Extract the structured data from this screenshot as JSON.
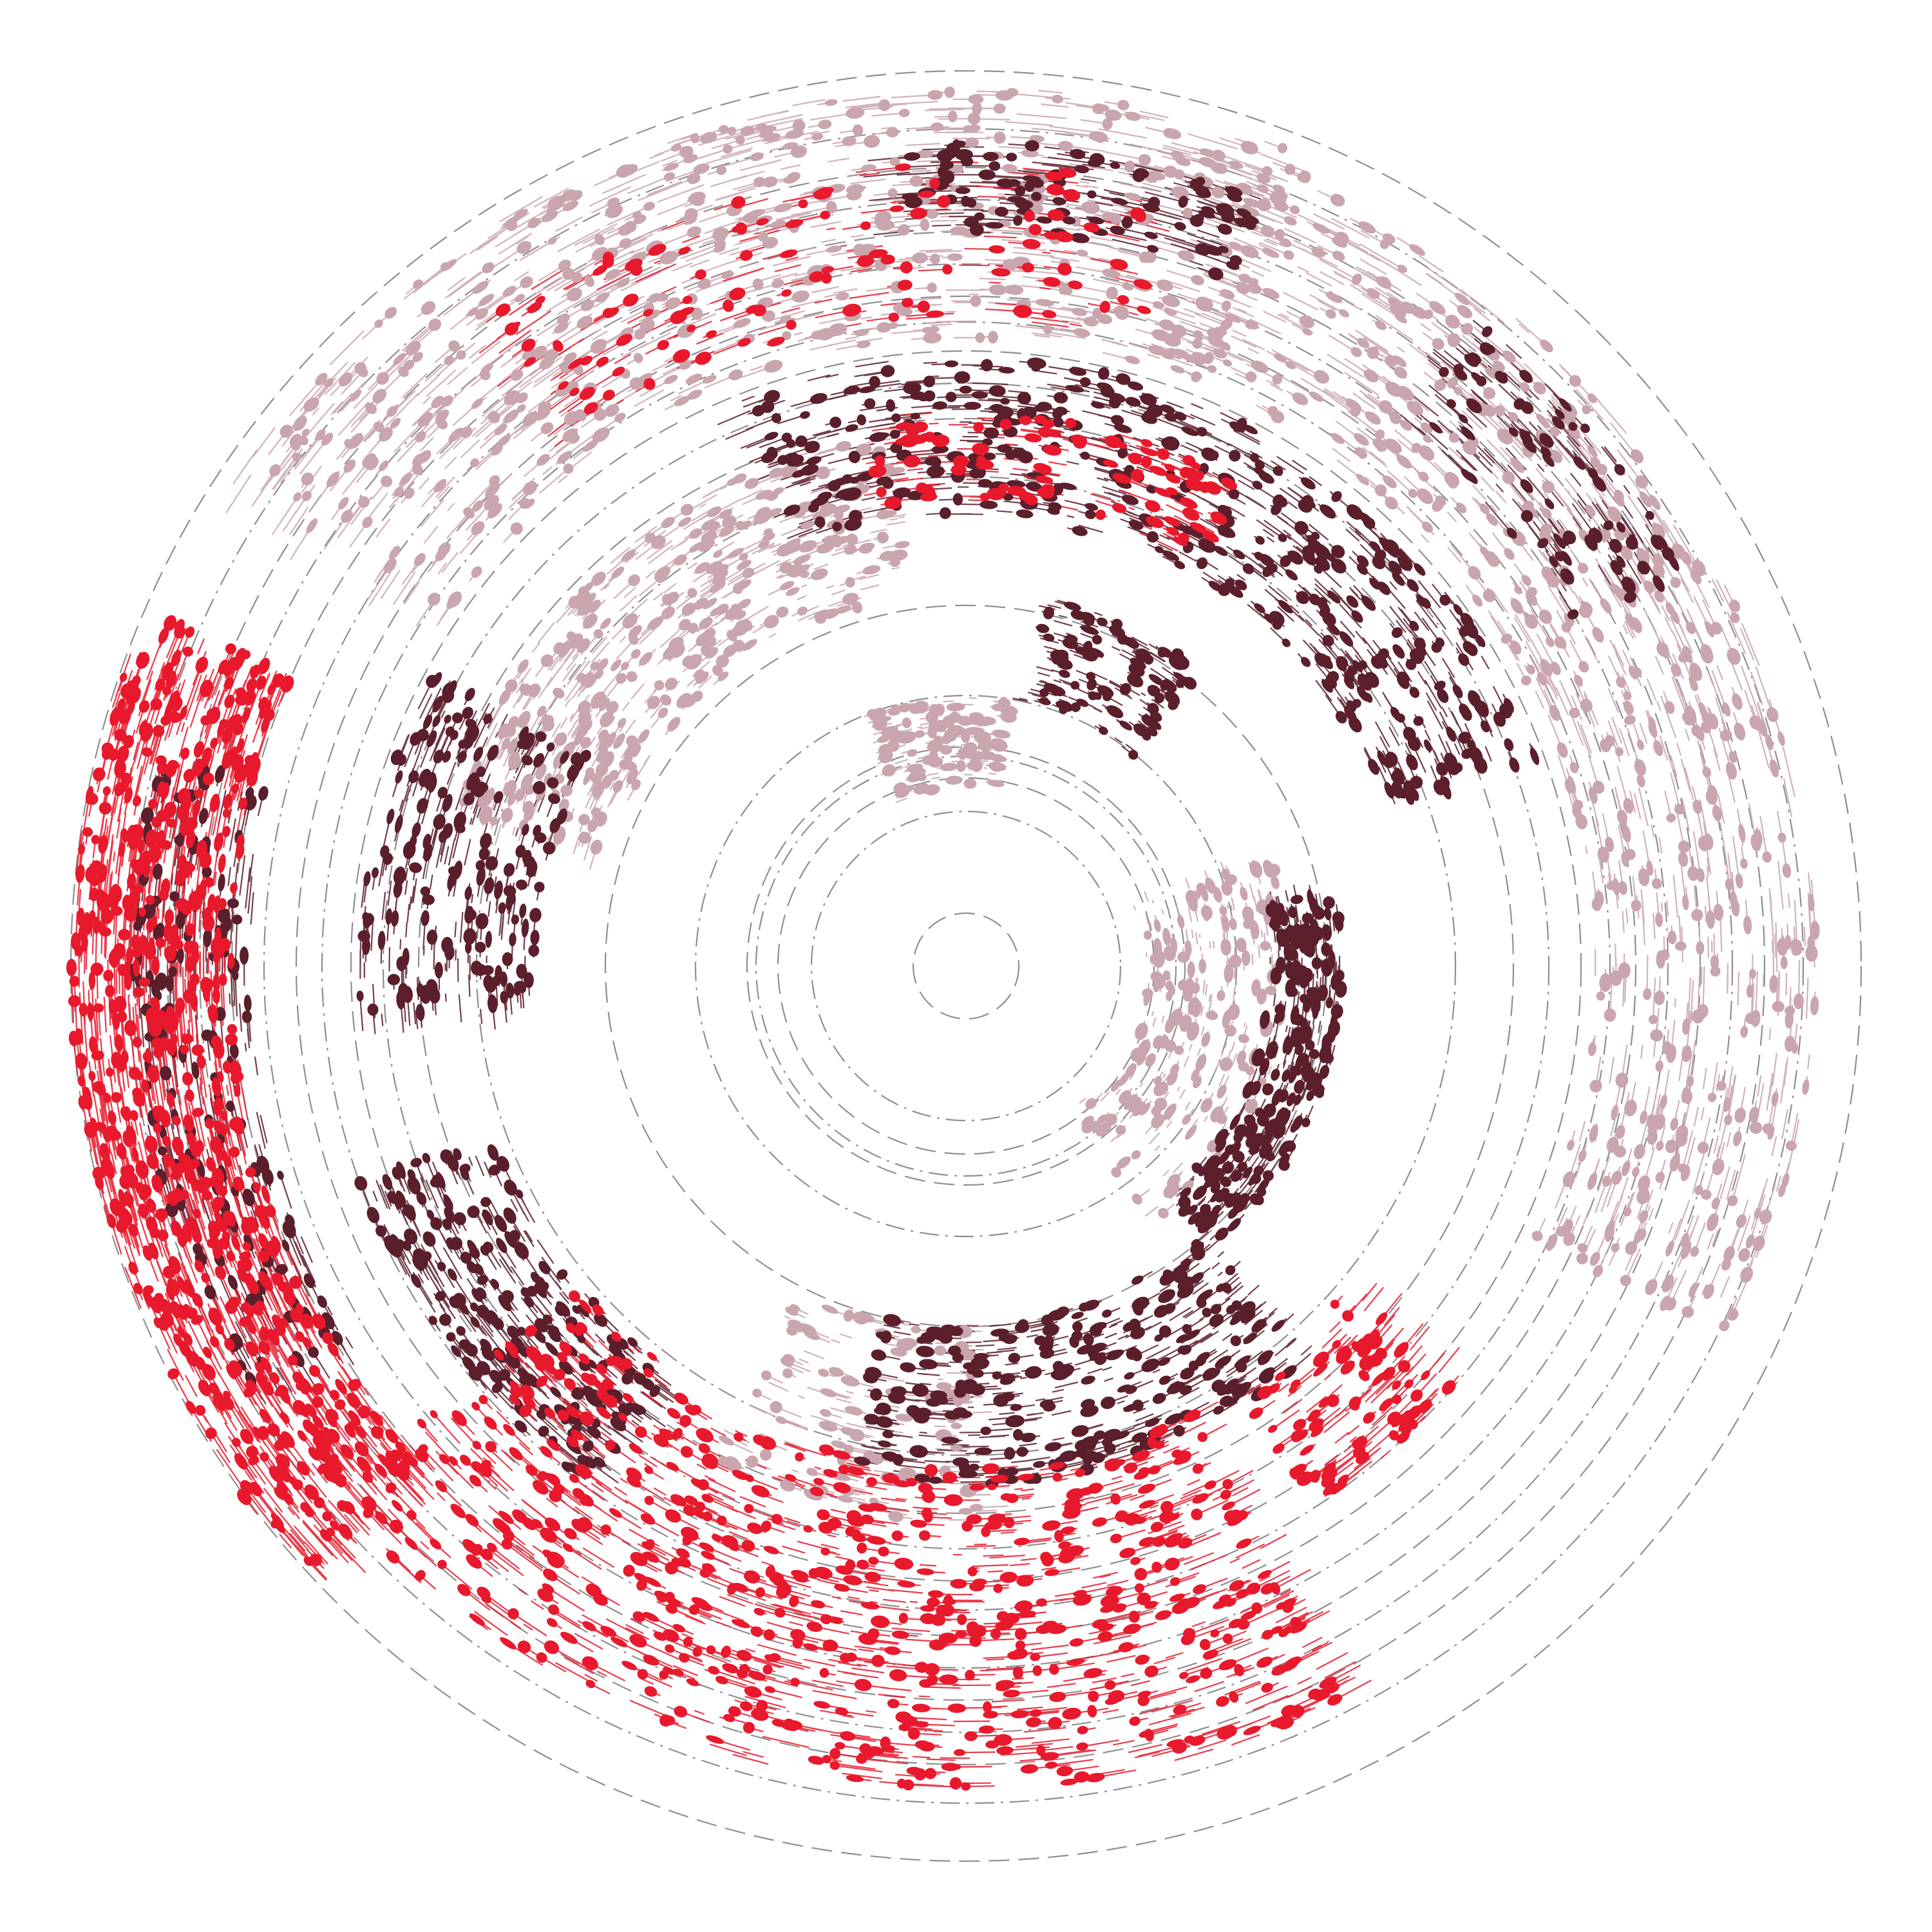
{
  "colors": {
    "background": "#ffffff",
    "ring_stroke": "#8f8f8f",
    "palette": {
      "mauve": "#c9a6ad",
      "maroon": "#5b1f2c",
      "red": "#e8192c"
    }
  },
  "ring_styles": [
    "dashed",
    "dash-dot"
  ],
  "strokes": [
    {
      "color": "mauve",
      "t0": -1.22,
      "t1": 0.45,
      "fr": [
        0.7,
        0.95
      ],
      "n": 900
    },
    {
      "color": "mauve",
      "t0": -2.55,
      "t1": -1.15,
      "fr": [
        0.7,
        0.98
      ],
      "n": 900
    },
    {
      "color": "mauve",
      "t0": -2.85,
      "t1": -1.7,
      "fr": [
        0.42,
        0.6
      ],
      "n": 520
    },
    {
      "color": "mauve",
      "t0": -0.35,
      "t1": 0.95,
      "fr": [
        0.2,
        0.36
      ],
      "n": 280
    },
    {
      "color": "mauve",
      "t0": -1.95,
      "t1": -1.4,
      "fr": [
        0.2,
        0.3
      ],
      "n": 160
    },
    {
      "color": "mauve",
      "t0": 1.55,
      "t1": 2.05,
      "fr": [
        0.4,
        0.62
      ],
      "n": 160
    },
    {
      "color": "maroon",
      "t0": -1.95,
      "t1": -0.35,
      "fr": [
        0.5,
        0.68
      ],
      "n": 700
    },
    {
      "color": "maroon",
      "t0": -0.2,
      "t1": 0.85,
      "fr": [
        0.34,
        0.42
      ],
      "n": 360
    },
    {
      "color": "maroon",
      "t0": 0.85,
      "t1": 1.8,
      "fr": [
        0.4,
        0.58
      ],
      "n": 460
    },
    {
      "color": "maroon",
      "t0": 2.2,
      "t1": 2.8,
      "fr": [
        0.56,
        0.72
      ],
      "n": 340
    },
    {
      "color": "maroon",
      "t0": 2.6,
      "t1": 3.4,
      "fr": [
        0.8,
        0.93
      ],
      "n": 280
    },
    {
      "color": "maroon",
      "t0": 3.05,
      "t1": 3.65,
      "fr": [
        0.48,
        0.68
      ],
      "n": 300
    },
    {
      "color": "maroon",
      "t0": -1.65,
      "t1": -1.2,
      "fr": [
        0.82,
        0.92
      ],
      "n": 150
    },
    {
      "color": "maroon",
      "t0": -0.9,
      "t1": -0.5,
      "fr": [
        0.78,
        0.92
      ],
      "n": 140
    },
    {
      "color": "maroon",
      "t0": -1.35,
      "t1": -0.9,
      "fr": [
        0.3,
        0.42
      ],
      "n": 150
    },
    {
      "color": "red",
      "t0": 2.4,
      "t1": 3.55,
      "fr": [
        0.82,
        1.0
      ],
      "n": 1300
    },
    {
      "color": "red",
      "t0": 1.1,
      "t1": 2.45,
      "fr": [
        0.56,
        0.92
      ],
      "n": 1100
    },
    {
      "color": "red",
      "t0": -2.2,
      "t1": -1.3,
      "fr": [
        0.72,
        0.9
      ],
      "n": 180
    },
    {
      "color": "red",
      "t0": -1.75,
      "t1": -1.05,
      "fr": [
        0.52,
        0.62
      ],
      "n": 160
    },
    {
      "color": "red",
      "t0": 0.7,
      "t1": 1.0,
      "fr": [
        0.56,
        0.72
      ],
      "n": 140
    }
  ]
}
